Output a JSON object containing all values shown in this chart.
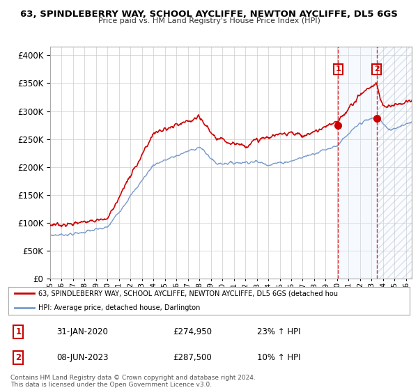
{
  "title": "63, SPINDLEBERRY WAY, SCHOOL AYCLIFFE, NEWTON AYCLIFFE, DL5 6GS",
  "subtitle": "Price paid vs. HM Land Registry's House Price Index (HPI)",
  "ytick_vals": [
    0,
    50000,
    100000,
    150000,
    200000,
    250000,
    300000,
    350000,
    400000
  ],
  "ylim": [
    0,
    415000
  ],
  "xlim": [
    1995,
    2026.5
  ],
  "legend_line1": "63, SPINDLEBERRY WAY, SCHOOL AYCLIFFE, NEWTON AYCLIFFE, DL5 6GS (detached hou",
  "legend_line2": "HPI: Average price, detached house, Darlington",
  "annotation1_label": "1",
  "annotation1_date": "31-JAN-2020",
  "annotation1_price": "£274,950",
  "annotation1_hpi": "23% ↑ HPI",
  "annotation2_label": "2",
  "annotation2_date": "08-JUN-2023",
  "annotation2_price": "£287,500",
  "annotation2_hpi": "10% ↑ HPI",
  "footer": "Contains HM Land Registry data © Crown copyright and database right 2024.\nThis data is licensed under the Open Government Licence v3.0.",
  "red_color": "#cc0000",
  "blue_color": "#7799cc",
  "shade_color": "#ddeeff",
  "annotation_color": "#cc0000",
  "background_color": "#ffffff",
  "grid_color": "#cccccc",
  "sale1_x": 2020.08,
  "sale1_y": 274950,
  "sale2_x": 2023.44,
  "sale2_y": 287500
}
